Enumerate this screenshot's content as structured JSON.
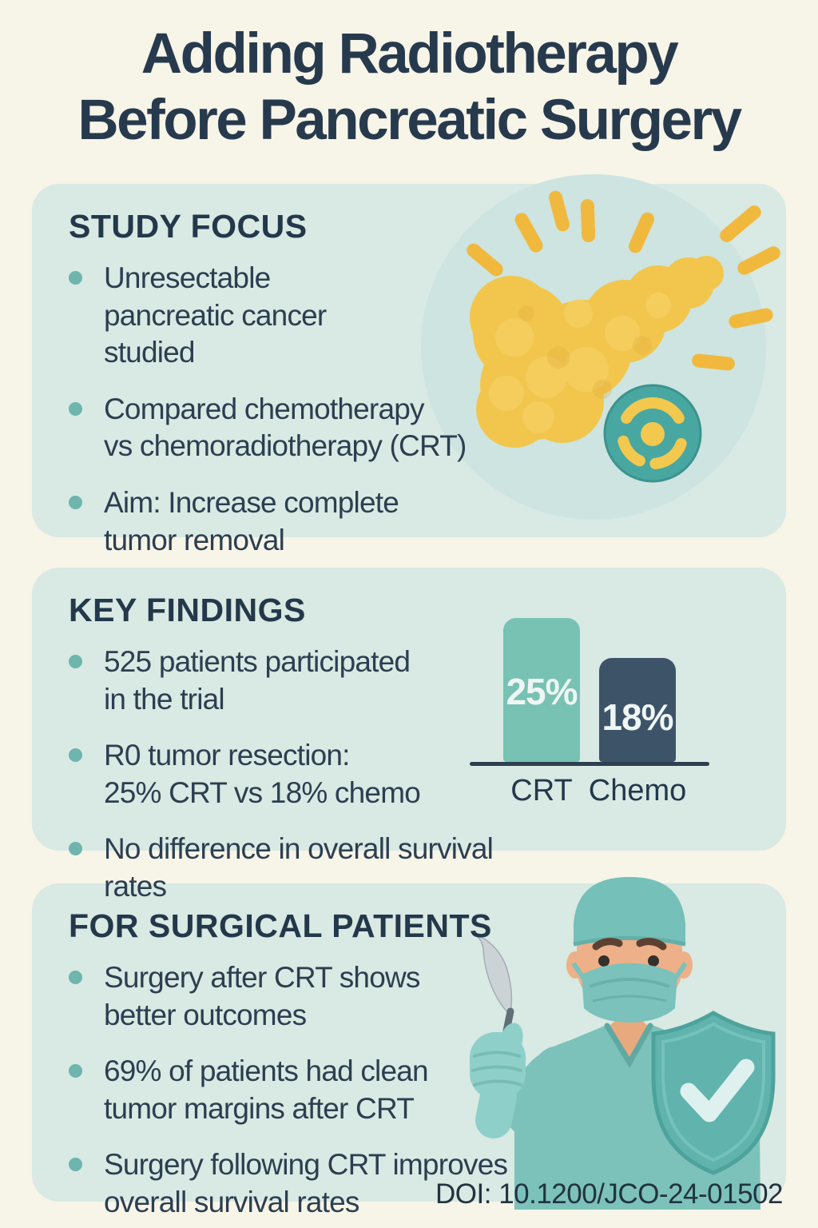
{
  "title": {
    "line1": "Adding Radiotherapy",
    "line2": "Before Pancreatic Surgery"
  },
  "sections": {
    "study_focus": {
      "heading": "STUDY FOCUS",
      "bullets": [
        "Unresectable\npancreatic cancer\nstudied",
        "Compared chemotherapy\nvs chemoradiotherapy (CRT)",
        "Aim: Increase complete\ntumor removal"
      ]
    },
    "key_findings": {
      "heading": "KEY FINDINGS",
      "bullets": [
        "525 patients participated\nin the trial",
        "R0 tumor resection:\n25% CRT vs 18% chemo",
        "No difference in overall survival rates"
      ]
    },
    "surgical_patients": {
      "heading": "FOR SURGICAL PATIENTS",
      "bullets": [
        "Surgery after CRT shows\nbetter outcomes",
        "69% of patients had clean\ntumor margins after CRT",
        "Surgery following CRT improves\noverall survival rates"
      ]
    }
  },
  "footer": {
    "doi": "DOI: 10.1200/JCO-24-01502"
  },
  "chart_data": {
    "type": "bar",
    "categories": [
      "CRT",
      "Chemo"
    ],
    "values": [
      25,
      18
    ],
    "value_labels": [
      "25%",
      "18%"
    ],
    "title": "",
    "xlabel": "",
    "ylabel": "",
    "ylim": [
      0,
      30
    ],
    "bar_colors": [
      "#77c2b3",
      "#3d5468"
    ],
    "grid": false,
    "legend": false
  },
  "illustrations": {
    "study_focus": "pancreas-with-radiation-rays-and-radiotherapy-badge",
    "key_findings": "bar-chart-r0-resection",
    "surgical_patients": "surgeon-with-scalpel-and-shield-check"
  },
  "colors": {
    "page_bg": "#f7f4e8",
    "card_bg": "#d9e9e3",
    "circle_bg": "#cde4e1",
    "heading_text": "#24384b",
    "body_text": "#2c3f50",
    "bullet_dot": "#6db5ad",
    "pancreas_yellow": "#f2c64d",
    "ray_yellow": "#f0b93e",
    "radiation_badge_teal": "#49a7a1",
    "bar_crt": "#77c2b3",
    "bar_chemo": "#3d5468",
    "axis_line": "#2d4052",
    "surgeon_scrubs": "#7cc2ba",
    "glove_teal": "#8ed0c9",
    "shield_teal": "#60b4ad",
    "skin": "#eeb088"
  }
}
